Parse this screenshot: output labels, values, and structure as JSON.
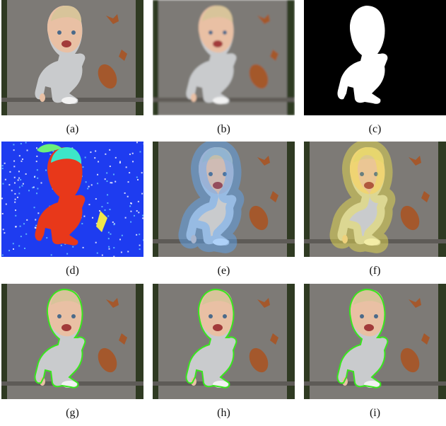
{
  "figure": {
    "panels": [
      {
        "id": "a",
        "caption": "(a)",
        "kind": "photo"
      },
      {
        "id": "b",
        "caption": "(b)",
        "kind": "photo-blurred"
      },
      {
        "id": "c",
        "caption": "(c)",
        "kind": "mask"
      },
      {
        "id": "d",
        "caption": "(d)",
        "kind": "heatmap"
      },
      {
        "id": "e",
        "caption": "(e)",
        "kind": "overlay-blue"
      },
      {
        "id": "f",
        "caption": "(f)",
        "kind": "overlay-yellow"
      },
      {
        "id": "g",
        "caption": "(g)",
        "kind": "contour"
      },
      {
        "id": "h",
        "caption": "(h)",
        "kind": "contour"
      },
      {
        "id": "i",
        "caption": "(i)",
        "kind": "contour"
      }
    ]
  },
  "colors": {
    "pavement": "#7d7a76",
    "pavement_dark": "#5e5b57",
    "grass": "#2f3a22",
    "skin": "#e9c0a4",
    "hair": "#d8c49a",
    "shirt": "#c9cbcd",
    "shoe": "#f2f2f2",
    "leaf": "#a4582c",
    "mask_fg": "#ffffff",
    "mask_bg": "#000000",
    "heat_bg": "#1e3cf0",
    "heat_fg": "#e8381a",
    "contour": "#39e61e"
  }
}
